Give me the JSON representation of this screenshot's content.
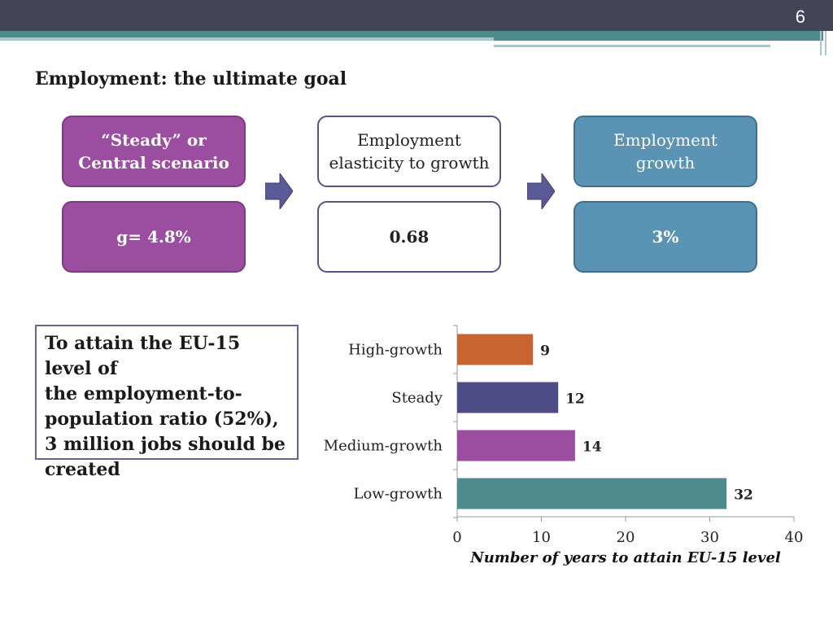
{
  "slide": {
    "number": "6",
    "title": "Employment: the ultimate goal"
  },
  "flow": {
    "box1": {
      "line1": "“Steady” or",
      "line2": "Central scenario",
      "value": "g= 4.8%"
    },
    "box2": {
      "line1": "Employment",
      "line2": "elasticity to growth",
      "value": "0.68"
    },
    "box3": {
      "line1": "Employment",
      "line2": "growth",
      "value": "3%"
    }
  },
  "callout": {
    "line1": "To attain the EU-15 level of",
    "line2": "the employment-to-",
    "line3": "population ratio (52%),",
    "line4": "3 million jobs should be",
    "line5": "created"
  },
  "colors": {
    "purple": "#9b4da0",
    "teal": "#4f8a8d",
    "blue": "#5b93b4",
    "header": "#444457"
  },
  "chart_data": {
    "type": "bar",
    "orientation": "horizontal",
    "categories": [
      "High-growth",
      "Steady",
      "Medium-growth",
      "Low-growth"
    ],
    "values": [
      9,
      12,
      14,
      32
    ],
    "data_labels": [
      "9",
      "12",
      "14",
      "32"
    ],
    "bar_colors": [
      "#c8642f",
      "#4e4c87",
      "#9b4da0",
      "#4f8a8d"
    ],
    "xlabel": "Number of years to attain EU-15 level",
    "xlim": [
      0,
      40
    ],
    "x_ticks": [
      "0",
      "10",
      "20",
      "30",
      "40"
    ],
    "grid": false,
    "legend": "none"
  }
}
